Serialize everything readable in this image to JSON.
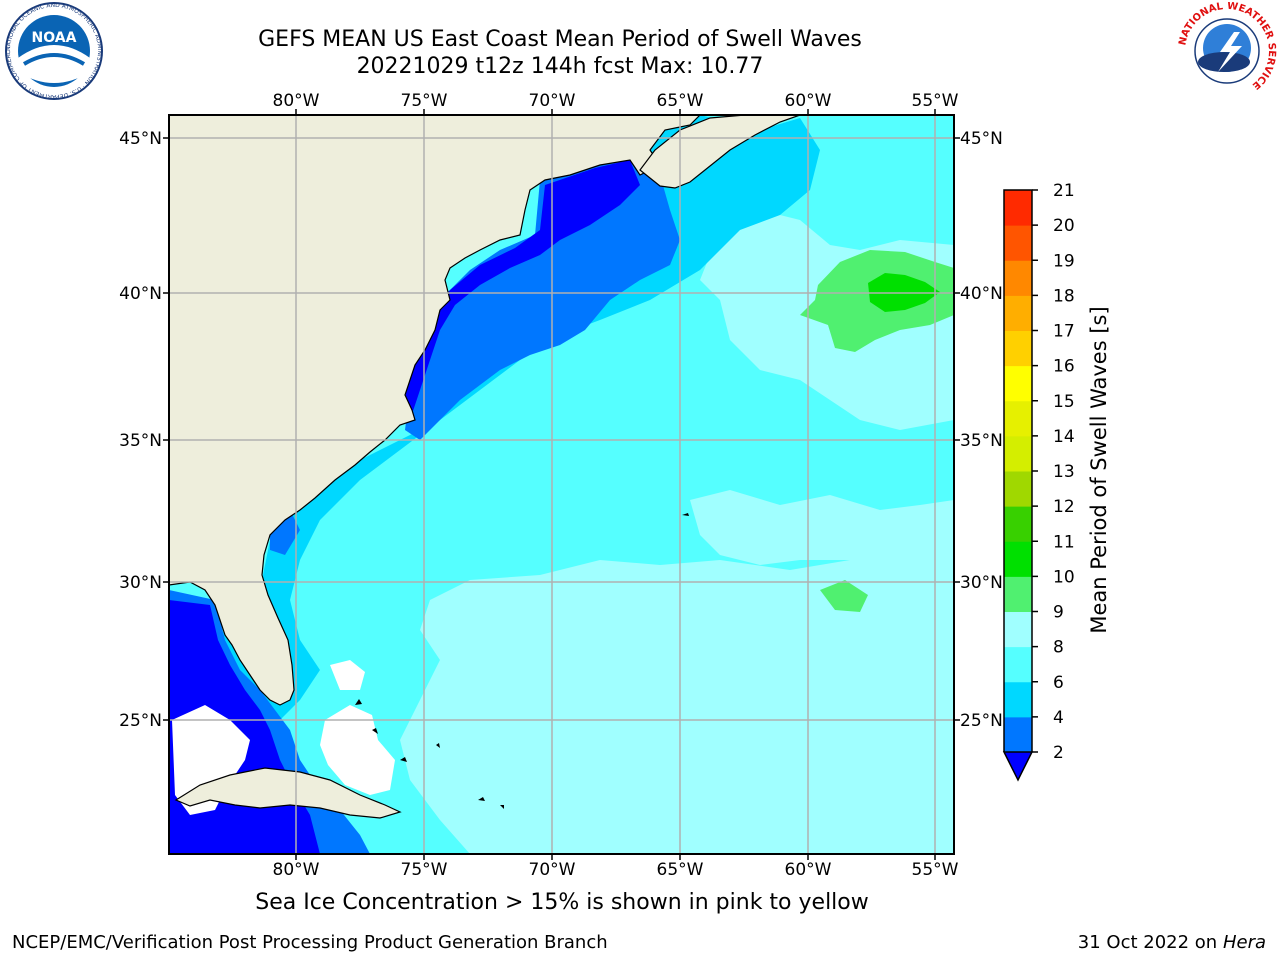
{
  "header": {
    "title_line1": "GEFS MEAN US East Coast Mean Period of Swell Waves",
    "title_line2": "20221029 t12z 144h fcst   Max: 10.77"
  },
  "map": {
    "lon_ticks": [
      "80°W",
      "75°W",
      "70°W",
      "65°W",
      "60°W",
      "55°W"
    ],
    "lat_ticks": [
      "45°N",
      "40°N",
      "35°N",
      "30°N",
      "25°N"
    ],
    "colors": {
      "land": "#eeeedc",
      "coast": "#000000",
      "grid": "#b0b0b0",
      "no_data": "#ffffff"
    }
  },
  "colorbar": {
    "label": "Mean Period of Swell Waves [s]",
    "ticks": [
      "2",
      "4",
      "6",
      "8",
      "9",
      "10",
      "11",
      "12",
      "13",
      "14",
      "15",
      "16",
      "17",
      "18",
      "19",
      "20",
      "21"
    ],
    "under_color": "#0000ff",
    "band_colors": [
      "#0077ff",
      "#00d8ff",
      "#55ffff",
      "#a0ffff",
      "#50f070",
      "#00e000",
      "#38d000",
      "#a0d800",
      "#d4ee00",
      "#e6f000",
      "#ffff00",
      "#ffd000",
      "#ffae00",
      "#ff8800",
      "#ff5500",
      "#ff2a00"
    ]
  },
  "logos": {
    "noaa_text": "NOAA",
    "noaa_ring": "NATIONAL OCEANIC AND ATMOSPHERIC ADMINISTRATION · U.S. DEPARTMENT OF COMMERCE",
    "nws_ring": "NATIONAL WEATHER SERVICE"
  },
  "notes": {
    "sea_ice": "Sea Ice Concentration > 15% is shown in pink to yellow"
  },
  "footer": {
    "left": "NCEP/EMC/Verification Post Processing Product Generation Branch",
    "right_prefix": "31 Oct 2022 on ",
    "right_host": "Hera"
  }
}
